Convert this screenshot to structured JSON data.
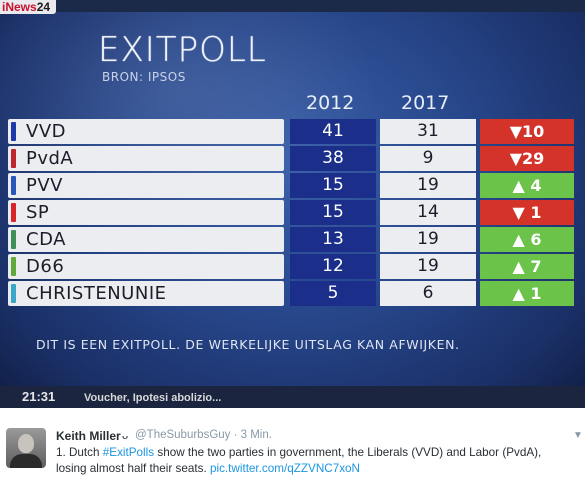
{
  "tv": {
    "channel_logo": {
      "prefix": "i",
      "brand": "News",
      "num": "24"
    },
    "title": "EXITPOLL",
    "source": "BRON: IPSOS",
    "years": [
      "2012",
      "2017"
    ],
    "disclaimer": "DIT IS EEN EXITPOLL. DE WERKELIJKE UITSLAG KAN AFWIJKEN.",
    "ticker": {
      "time": "21:31",
      "text": "Voucher, Ipotesi abolizio..."
    },
    "results": [
      {
        "party": "VVD",
        "color": "#1f3aa8",
        "v2012": "41",
        "v2017": "31",
        "change": "▼10",
        "dir": "down"
      },
      {
        "party": "PvdA",
        "color": "#c0262e",
        "v2012": "38",
        "v2017": "9",
        "change": "▼29",
        "dir": "down"
      },
      {
        "party": "PVV",
        "color": "#2a58b8",
        "v2012": "15",
        "v2017": "19",
        "change": "▲ 4",
        "dir": "up"
      },
      {
        "party": "SP",
        "color": "#d8252a",
        "v2012": "15",
        "v2017": "14",
        "change": "▼ 1",
        "dir": "down"
      },
      {
        "party": "CDA",
        "color": "#3f8f5a",
        "v2012": "13",
        "v2017": "19",
        "change": "▲ 6",
        "dir": "up"
      },
      {
        "party": "D66",
        "color": "#5faa3a",
        "v2012": "12",
        "v2017": "19",
        "change": "▲ 7",
        "dir": "up"
      },
      {
        "party": "CHRISTENUNIE",
        "color": "#3aa7c9",
        "v2012": "5",
        "v2017": "6",
        "change": "▲ 1",
        "dir": "up"
      }
    ]
  },
  "tweet": {
    "author": "Keith Miller",
    "verified_glyph": "ᴗ",
    "handle_time": "@TheSuburbsGuy · 3 Min.",
    "text_before": "1. Dutch ",
    "hashtag": "#ExitPolls",
    "text_after": " show the two parties in government, the Liberals (VVD) and Labor (PvdA), losing almost half their seats. ",
    "link": "pic.twitter.com/qZZVNC7xoN",
    "menu_icon": "chevron-down-icon"
  }
}
